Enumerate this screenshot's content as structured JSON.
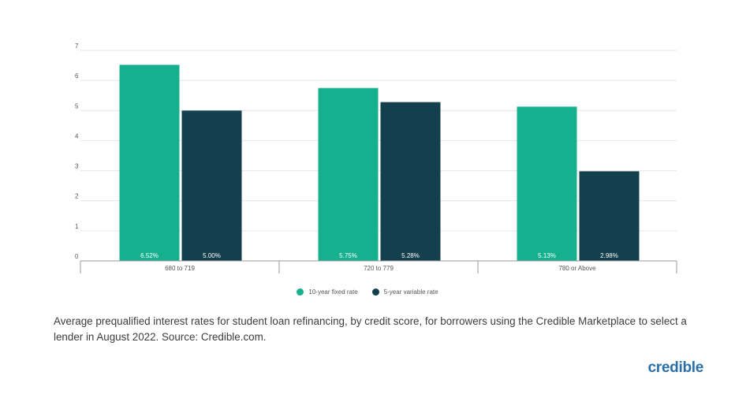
{
  "chart_data": {
    "type": "bar",
    "categories": [
      "680 to 719",
      "720 to 779",
      "780 or Above"
    ],
    "series": [
      {
        "name": "10-year fixed rate",
        "values": [
          6.52,
          5.75,
          5.13
        ],
        "labels": [
          "6.52%",
          "5.75%",
          "5.13%"
        ],
        "color": "#17b08f"
      },
      {
        "name": "5-year variable rate",
        "values": [
          5.0,
          5.28,
          2.98
        ],
        "labels": [
          "5.00%",
          "5.28%",
          "2.98%"
        ],
        "color": "#143f4d"
      }
    ],
    "y_ticks": [
      "0",
      "1",
      "2",
      "3",
      "4",
      "5",
      "6",
      "7"
    ],
    "ylim": [
      0,
      7
    ],
    "grid": true,
    "legend_position": "bottom-center"
  },
  "caption": "Average prequalified interest rates for student loan refinancing, by credit score, for borrowers using the Credible Marketplace to select a lender in August 2022. Source: Credible.com.",
  "logo_text": "credible",
  "colors": {
    "fixed": "#17b08f",
    "variable": "#143f4d",
    "grid": "#e6e6e6",
    "axis": "#999999"
  }
}
